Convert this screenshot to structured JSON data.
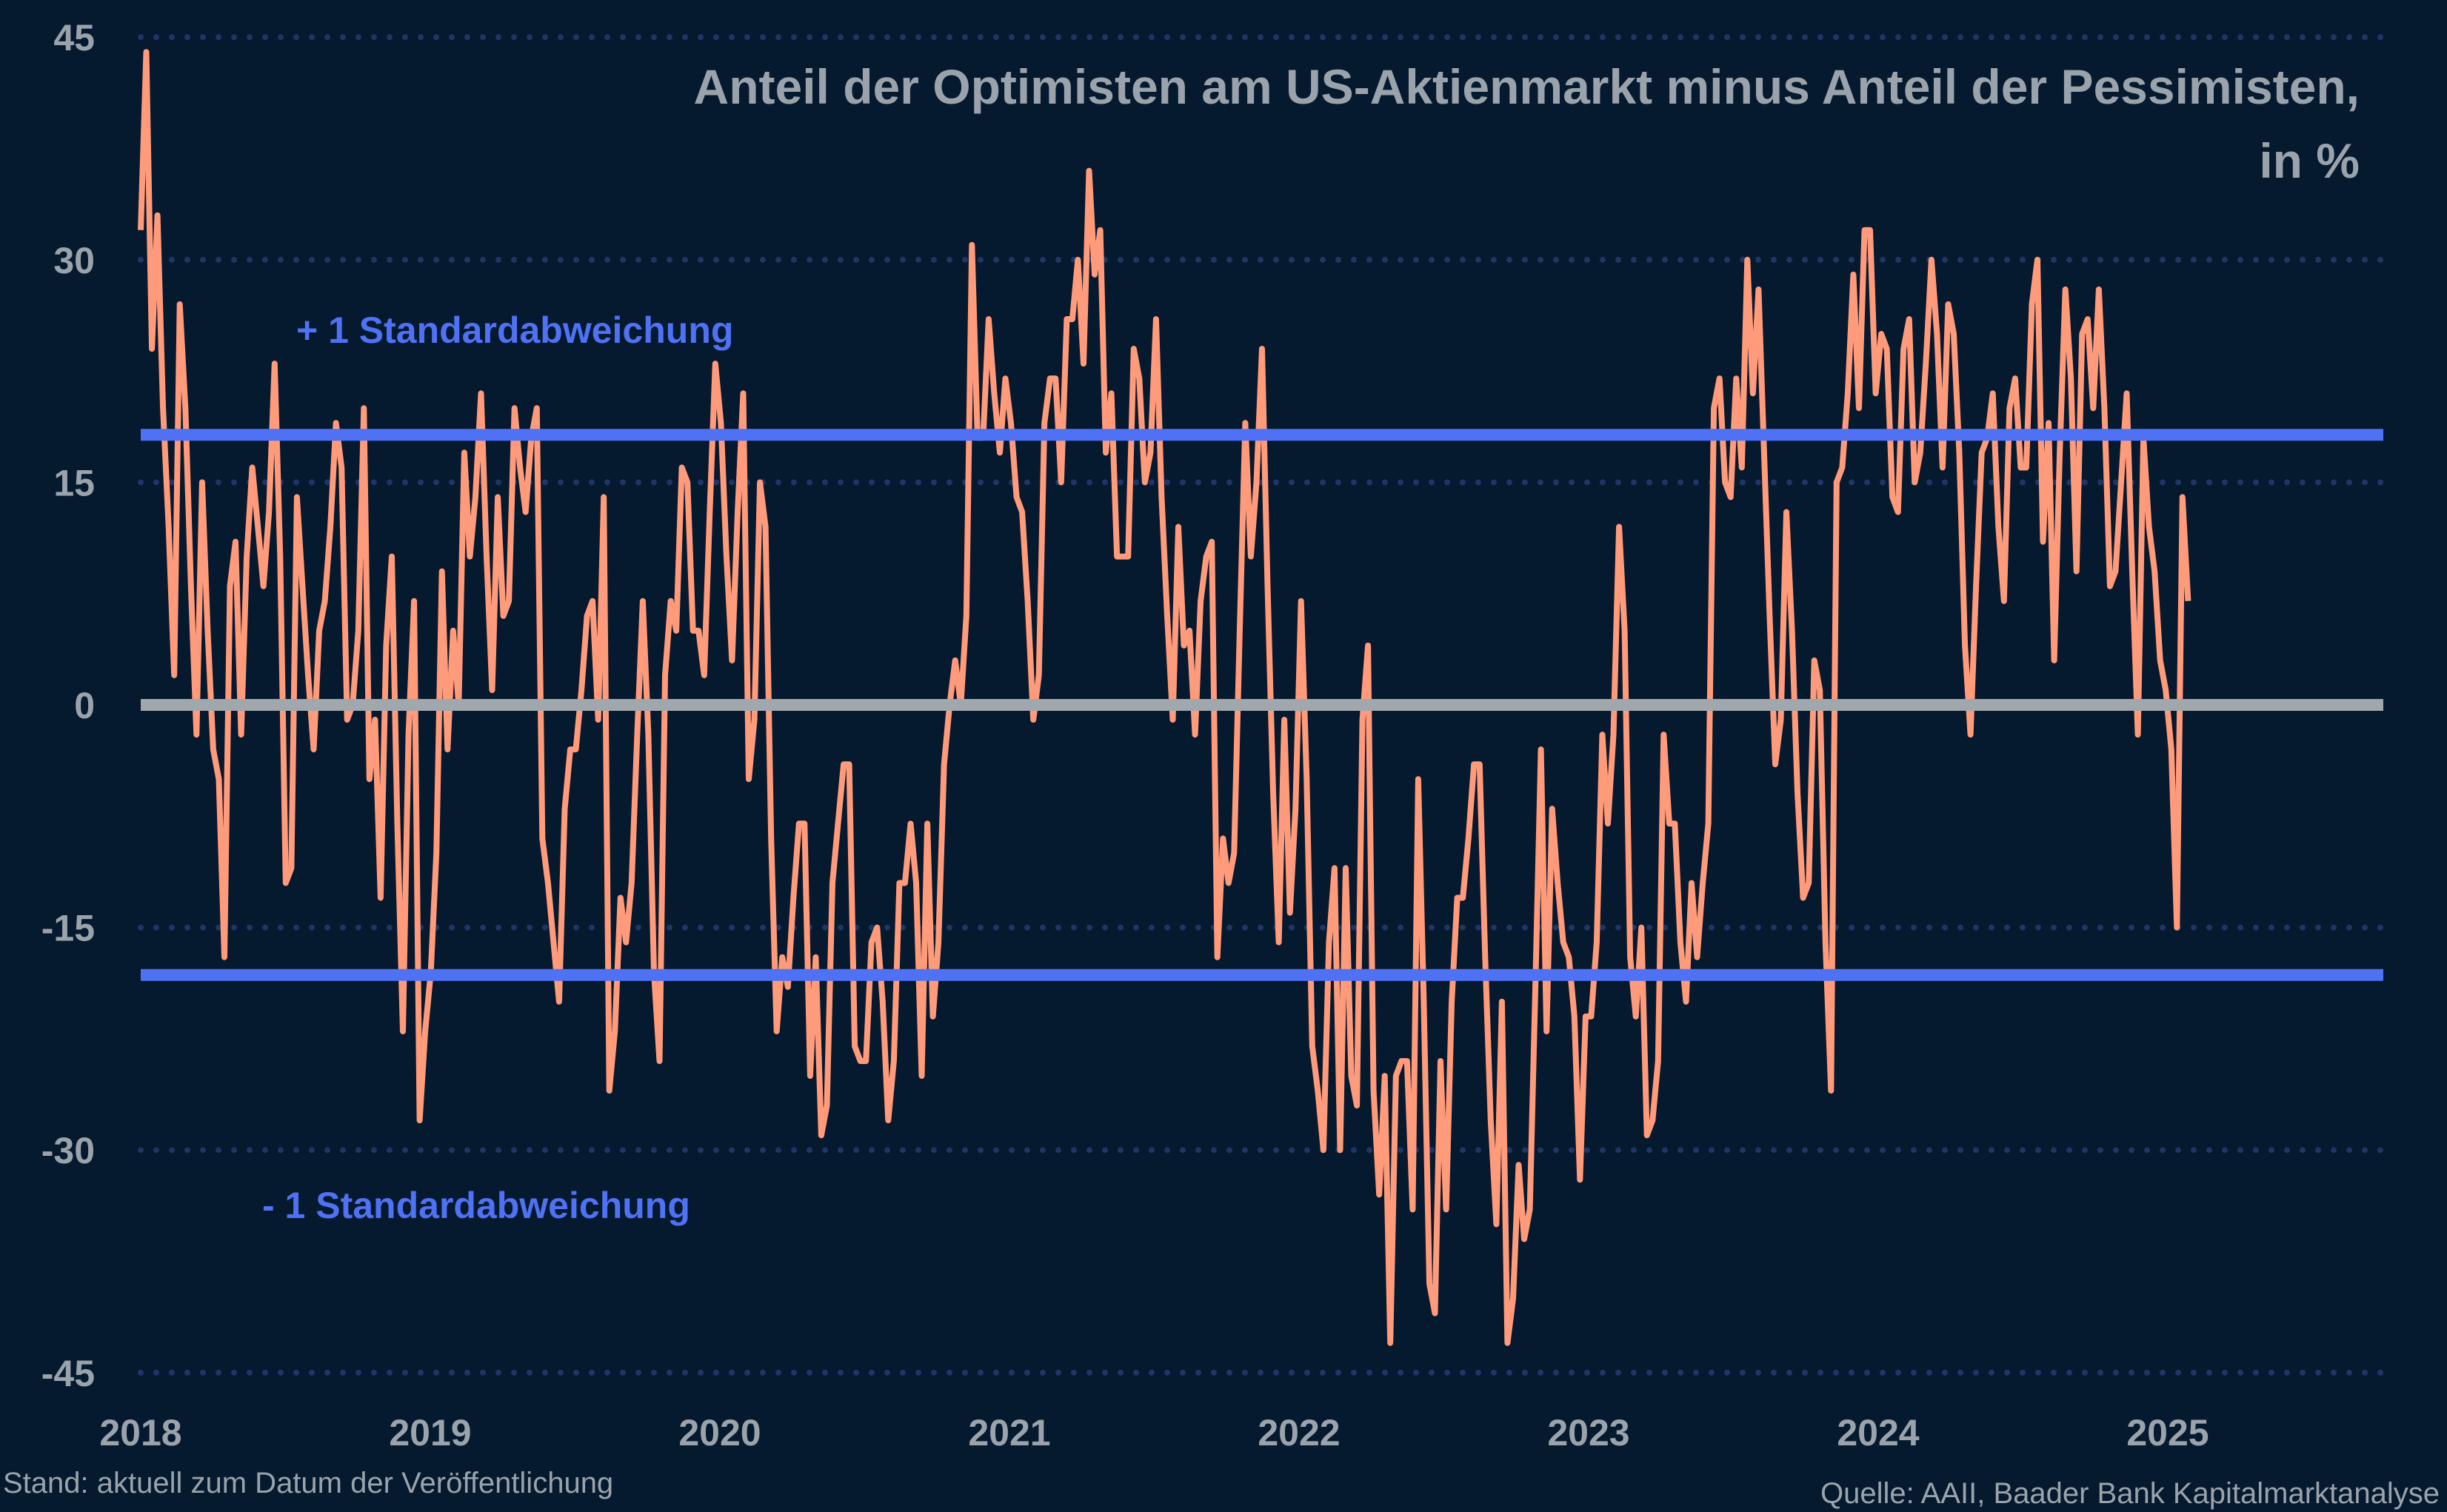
{
  "chart_data": {
    "type": "line",
    "title": "Anteil der Optimisten am US-Aktienmarkt minus Anteil der Pessimisten,",
    "title_line2": "in %",
    "xlabel": "",
    "ylabel": "",
    "ylim": [
      -45,
      45
    ],
    "yticks": [
      "45",
      "30",
      "15",
      "0",
      "-15",
      "-30",
      "-45"
    ],
    "ytick_values": [
      45,
      30,
      15,
      0,
      -15,
      -30,
      -45
    ],
    "xticks": [
      "2018",
      "2019",
      "2020",
      "2021",
      "2022",
      "2023",
      "2024",
      "2025"
    ],
    "xlim": [
      2018,
      2025.75
    ],
    "grid": "horizontal dotted",
    "series": [
      {
        "frequency": "weekly",
        "x_range": [
          2018.0,
          2025.07
        ],
        "color": "#ff9b7a",
        "values": [
          32,
          44,
          24,
          33,
          20,
          12,
          2,
          27,
          20,
          8,
          -2,
          15,
          5,
          -3,
          -5,
          -17,
          8,
          11,
          -2,
          10,
          16,
          12,
          8,
          13,
          23,
          10,
          -12,
          -11,
          14,
          8,
          2,
          -3,
          5,
          7,
          12,
          19,
          16,
          -1,
          0,
          5,
          20,
          -5,
          -1,
          -13,
          4,
          10,
          -8,
          -22,
          -2,
          7,
          -28,
          -22,
          -18,
          -10,
          9,
          -3,
          5,
          0,
          17,
          10,
          14,
          21,
          10,
          1,
          14,
          6,
          7,
          20,
          16,
          13,
          18,
          20,
          -9,
          -12,
          -16,
          -20,
          -7,
          -3,
          -3,
          1,
          6,
          7,
          -1,
          14,
          -26,
          -22,
          -13,
          -16,
          -12,
          -2,
          7,
          -2,
          -18,
          -24,
          2,
          7,
          5,
          16,
          15,
          5,
          5,
          2,
          13,
          23,
          19,
          10,
          3,
          13,
          21,
          -5,
          -1,
          15,
          12,
          -9,
          -22,
          -17,
          -19,
          -13,
          -8,
          -8,
          -25,
          -17,
          -29,
          -27,
          -12,
          -8,
          -4,
          -4,
          -23,
          -24,
          -24,
          -16,
          -15,
          -20,
          -28,
          -24,
          -12,
          -12,
          -8,
          -12,
          -25,
          -8,
          -21,
          -16,
          -4,
          0,
          3,
          0,
          6,
          31,
          18,
          18,
          26,
          21,
          17,
          22,
          19,
          14,
          13,
          7,
          -1,
          2,
          19,
          22,
          22,
          15,
          26,
          26,
          30,
          23,
          36,
          29,
          32,
          17,
          21,
          10,
          10,
          10,
          24,
          22,
          15,
          17,
          26,
          14,
          6,
          -1,
          12,
          4,
          5,
          -2,
          7,
          10,
          11,
          -17,
          -9,
          -12,
          -10,
          5,
          19,
          10,
          15,
          24,
          8,
          -6,
          -16,
          -1,
          -14,
          -7,
          7,
          -5,
          -23,
          -26,
          -30,
          -16,
          -11,
          -30,
          -11,
          -25,
          -27,
          -1,
          4,
          -26,
          -33,
          -25,
          -43,
          -25,
          -24,
          -24,
          -34,
          -5,
          -20,
          -39,
          -41,
          -24,
          -34,
          -20,
          -13,
          -13,
          -9,
          -4,
          -4,
          -17,
          -28,
          -35,
          -20,
          -43,
          -40,
          -31,
          -36,
          -34,
          -19,
          -3,
          -22,
          -7,
          -12,
          -16,
          -17,
          -21,
          -32,
          -21,
          -21,
          -16,
          -2,
          -8,
          -2,
          12,
          5,
          -17,
          -21,
          -15,
          -29,
          -28,
          -24,
          -2,
          -8,
          -8,
          -16,
          -20,
          -12,
          -17,
          -12,
          -8,
          20,
          22,
          15,
          14,
          22,
          16,
          30,
          21,
          28,
          17,
          6,
          -4,
          -1,
          13,
          5,
          -6,
          -13,
          -12,
          3,
          1,
          -16,
          -26,
          15,
          16,
          21,
          29,
          20,
          32,
          32,
          21,
          25,
          24,
          14,
          13,
          24,
          26,
          15,
          17,
          23,
          30,
          25,
          16,
          27,
          25,
          17,
          4,
          -2,
          8,
          17,
          18,
          21,
          12,
          7,
          20,
          22,
          16,
          16,
          27,
          30,
          11,
          19,
          3,
          17,
          28,
          22,
          9,
          25,
          26,
          20,
          28,
          20,
          8,
          9,
          15,
          21,
          9,
          -2,
          18,
          12,
          9,
          3,
          1,
          -3,
          -15,
          14,
          7
        ]
      }
    ],
    "reference_lines": [
      {
        "label": "+ 1 Standardabweichung",
        "value": 18.2,
        "color": "#4f72f5"
      },
      {
        "label": "- 1 Standardabweichung",
        "value": -18.2,
        "color": "#4f72f5"
      },
      {
        "label": "",
        "value": 0,
        "color": "#a0a7ad"
      }
    ]
  },
  "footer": {
    "note": "Stand: aktuell zum Datum der Veröffentlichung",
    "source": "Quelle: AAII, Baader Bank Kapitalmarktanalyse"
  },
  "colors": {
    "background": "#05192f",
    "grid": "#1f3566",
    "text": "#9aa3ab"
  }
}
